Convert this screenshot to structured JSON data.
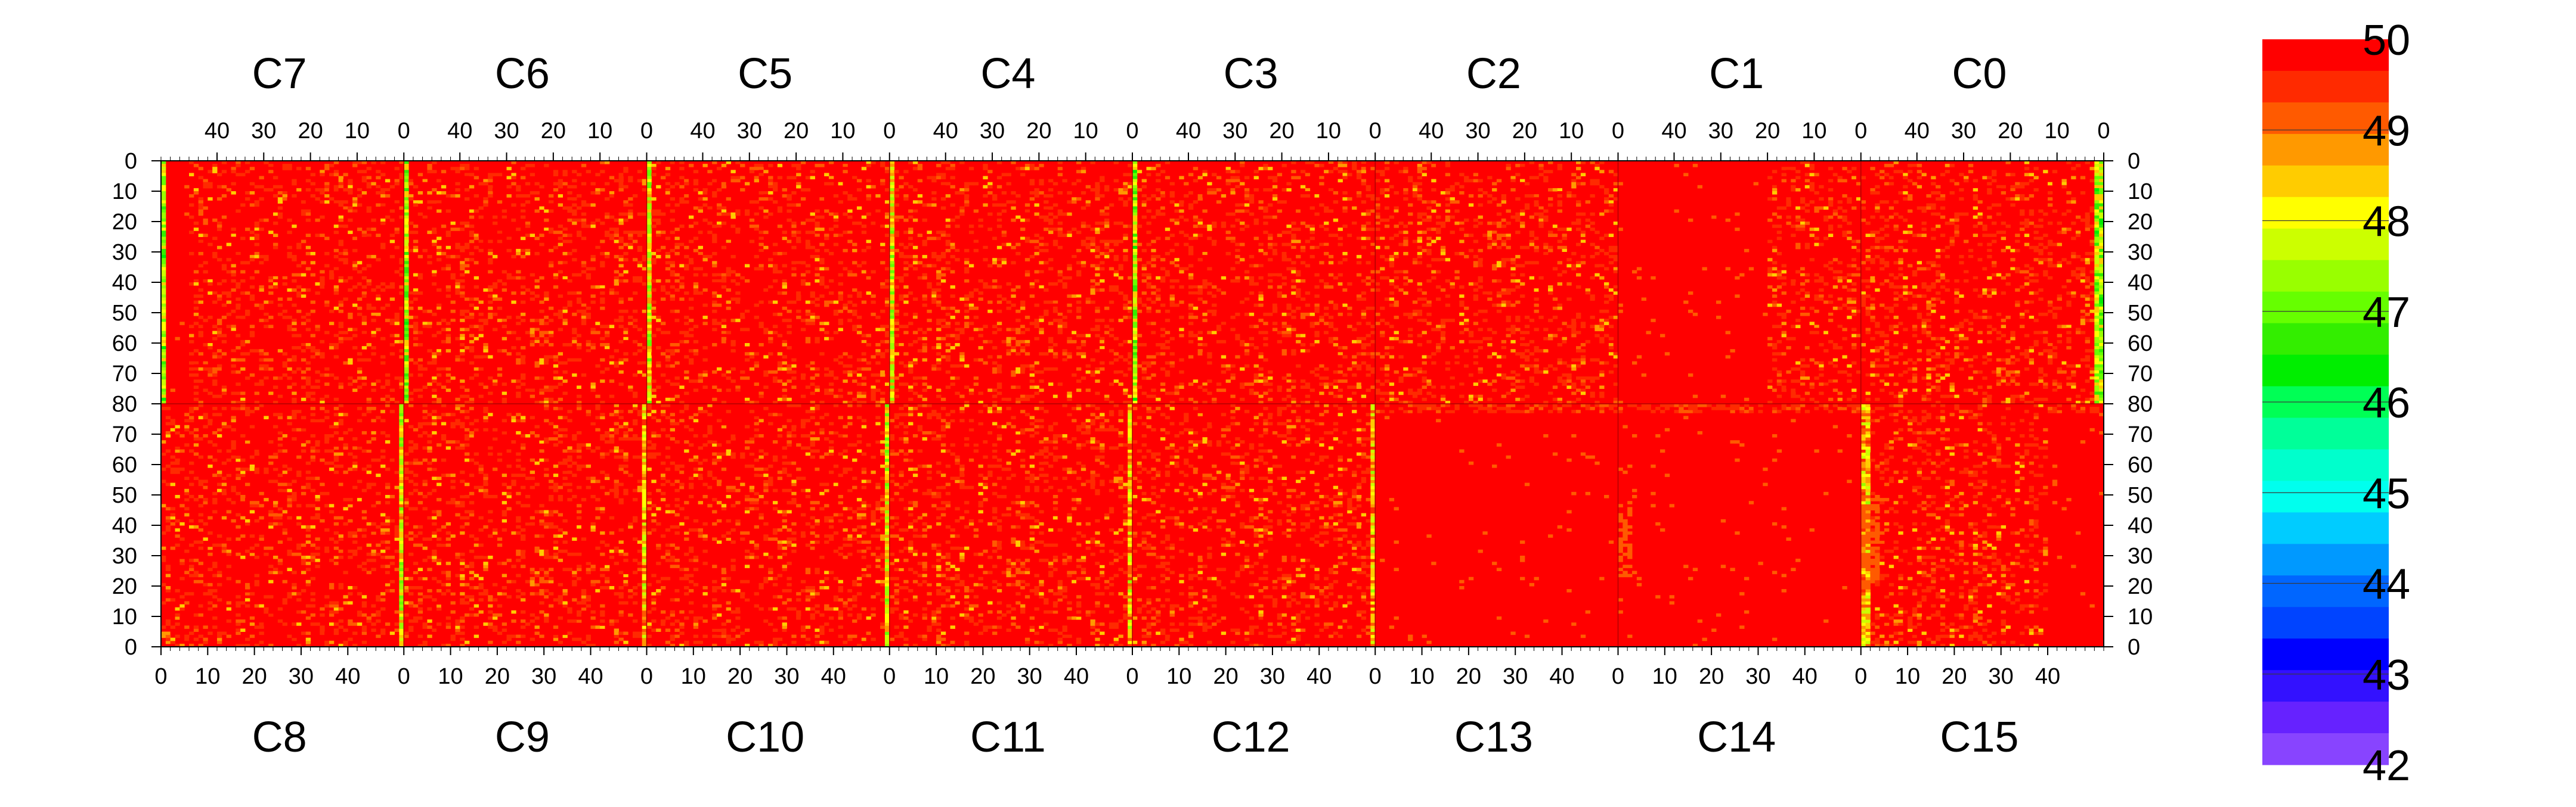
{
  "chart_data": {
    "type": "heatmap",
    "top_chip_labels": [
      "C7",
      "C6",
      "C5",
      "C4",
      "C3",
      "C2",
      "C1",
      "C0"
    ],
    "bottom_chip_labels": [
      "C8",
      "C9",
      "C10",
      "C11",
      "C12",
      "C13",
      "C14",
      "C15"
    ],
    "top_x_tick_labels": [
      "40",
      "30",
      "20",
      "10",
      "0"
    ],
    "bottom_x_tick_labels": [
      "0",
      "10",
      "20",
      "30",
      "40"
    ],
    "top_half_y_ticks": [
      0,
      10,
      20,
      30,
      40,
      50,
      60,
      70,
      80
    ],
    "bottom_half_y_ticks": [
      70,
      60,
      50,
      40,
      30,
      20,
      10,
      0
    ],
    "columns_per_chip": 52,
    "rows_per_half": 80,
    "value_range": [
      42,
      50
    ],
    "colorbar": {
      "tick_labels": [
        "50",
        "49",
        "48",
        "47",
        "46",
        "45",
        "44",
        "43",
        "42"
      ],
      "colors": [
        "#ff0000",
        "#ff2a00",
        "#ff5a00",
        "#ff9900",
        "#ffcc00",
        "#ffff00",
        "#ccff00",
        "#99ff00",
        "#66ff00",
        "#33ee00",
        "#00ee00",
        "#00ff55",
        "#00ff99",
        "#00ffcc",
        "#00ffee",
        "#00ccff",
        "#0099ff",
        "#0066ff",
        "#0044ff",
        "#0000ff",
        "#3311ff",
        "#6622ff",
        "#8844ff"
      ]
    },
    "chip_profiles": [
      {
        "chip": "C7",
        "typical": 50,
        "noisy_region_from_edge": 46,
        "hotspot_columns": [
          52
        ],
        "hotspot_value": 47.5
      },
      {
        "chip": "C6",
        "typical": 50,
        "noisy_region_from_edge": 52,
        "hotspot_columns": [
          52
        ],
        "hotspot_value": 47.5
      },
      {
        "chip": "C5",
        "typical": 50,
        "noisy_region_from_edge": 52,
        "hotspot_columns": [
          52
        ],
        "hotspot_value": 48.0
      },
      {
        "chip": "C4",
        "typical": 50,
        "noisy_region_from_edge": 52,
        "hotspot_columns": [
          52
        ],
        "hotspot_value": 48.0
      },
      {
        "chip": "C3",
        "typical": 50,
        "noisy_region_from_edge": 52,
        "hotspot_columns": [
          52
        ],
        "hotspot_value": 47.5
      },
      {
        "chip": "C2",
        "typical": 50,
        "noisy_region_from_edge": 26,
        "hotspot_columns": [],
        "hotspot_value": 49.0
      },
      {
        "chip": "C1",
        "typical": 50,
        "noisy_region_from_edge": 20,
        "hotspot_columns": [],
        "hotspot_value": 49.0
      },
      {
        "chip": "C0",
        "typical": 50,
        "noisy_region_from_edge": 52,
        "hotspot_columns": [
          0
        ],
        "hotspot_value": 47.5
      },
      {
        "chip": "C8",
        "typical": 50,
        "noisy_region_from_edge": 52,
        "hotspot_columns": [
          52
        ],
        "hotspot_value": 48.0
      },
      {
        "chip": "C9",
        "typical": 50,
        "noisy_region_from_edge": 52,
        "hotspot_columns": [
          52
        ],
        "hotspot_value": 48.5
      },
      {
        "chip": "C10",
        "typical": 50,
        "noisy_region_from_edge": 52,
        "hotspot_columns": [
          52
        ],
        "hotspot_value": 48.0
      },
      {
        "chip": "C11",
        "typical": 50,
        "noisy_region_from_edge": 52,
        "hotspot_columns": [
          52
        ],
        "hotspot_value": 48.5
      },
      {
        "chip": "C12",
        "typical": 50,
        "noisy_region_from_edge": 52,
        "hotspot_columns": [
          52
        ],
        "hotspot_value": 48.5
      },
      {
        "chip": "C13",
        "typical": 50,
        "noisy_region_from_edge": 0,
        "hotspot_columns": [],
        "hotspot_value": 49.0
      },
      {
        "chip": "C14",
        "typical": 50,
        "noisy_region_from_edge": 0,
        "hotspot_columns": [],
        "hotspot_value": 49.0
      },
      {
        "chip": "C15",
        "typical": 50,
        "noisy_region_from_edge": 40,
        "hotspot_columns": [
          0
        ],
        "hotspot_value": 48.5
      }
    ]
  }
}
